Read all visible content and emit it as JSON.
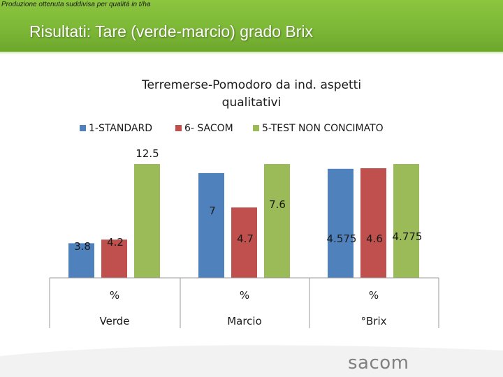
{
  "top_note": "Produzione ottenuta suddivisa per qualità in t/ha",
  "slide_title": "Risultati: Tare (verde-marcio) grado Brix",
  "logo_text": "sacom",
  "chart_data": {
    "type": "bar",
    "title": "Terremerse-Pomodoro da ind. aspetti qualitativi",
    "title_lines": [
      "Terremerse-Pomodoro da ind. aspetti",
      "qualitativi"
    ],
    "groups": [
      {
        "id": "verde",
        "unit": "%",
        "label": "Verde",
        "ymax": 12.5
      },
      {
        "id": "marcio",
        "unit": "%",
        "label": "Marcio",
        "ymax": 7.6
      },
      {
        "id": "brix",
        "unit": "%",
        "label": "°Brix",
        "ymax": 4.775
      }
    ],
    "series": [
      {
        "name": "1-STANDARD",
        "color": "#4f81bd",
        "values": [
          3.8,
          7,
          4.575
        ],
        "labels": [
          "3.8",
          "7",
          "4.575"
        ]
      },
      {
        "name": "6- SACOM",
        "color": "#c0504d",
        "values": [
          4.2,
          4.7,
          4.6
        ],
        "labels": [
          "4.2",
          "4.7",
          "4.6"
        ]
      },
      {
        "name": "5-TEST NON CONCIMATO",
        "color": "#9bbb59",
        "values": [
          12.5,
          7.6,
          4.775
        ],
        "labels": [
          "12.5",
          "7.6",
          "4.775"
        ]
      }
    ],
    "legend_position": "top",
    "gridlines": false,
    "note": "each group scaled independently (group max fills bar area)"
  }
}
